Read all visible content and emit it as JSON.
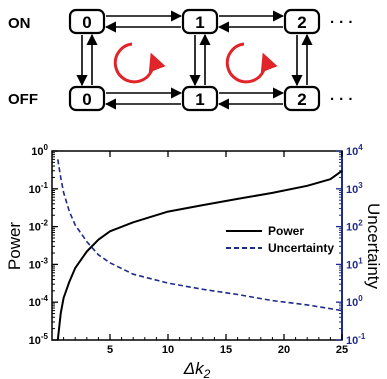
{
  "diagram": {
    "row_labels": [
      "ON",
      "OFF"
    ],
    "states": [
      "0",
      "1",
      "2"
    ],
    "ellipsis": "· · ·",
    "cycle_color": "#e0242a"
  },
  "chart_data": {
    "type": "line",
    "xlabel": "Δk",
    "xlabel_sub": "2",
    "ylabel_left": "Power",
    "ylabel_right": "Uncertainty",
    "xlim": [
      0,
      25
    ],
    "xticks": [
      "5",
      "10",
      "15",
      "20",
      "25"
    ],
    "xtick_values": [
      5,
      10,
      15,
      20,
      25
    ],
    "yscale": "log",
    "ylim_left": [
      1e-05,
      1
    ],
    "ylim_right": [
      0.1,
      10000
    ],
    "yticks_left": [
      {
        "base": "10",
        "exp": "0",
        "value": 1
      },
      {
        "base": "10",
        "exp": "-1",
        "value": 0.1
      },
      {
        "base": "10",
        "exp": "-2",
        "value": 0.01
      },
      {
        "base": "10",
        "exp": "-3",
        "value": 0.001
      },
      {
        "base": "10",
        "exp": "-4",
        "value": 0.0001
      },
      {
        "base": "10",
        "exp": "-5",
        "value": 1e-05
      }
    ],
    "yticks_right": [
      {
        "base": "10",
        "exp": "4",
        "value": 10000
      },
      {
        "base": "10",
        "exp": "3",
        "value": 1000
      },
      {
        "base": "10",
        "exp": "2",
        "value": 100
      },
      {
        "base": "10",
        "exp": "1",
        "value": 10
      },
      {
        "base": "10",
        "exp": "0",
        "value": 1
      },
      {
        "base": "10",
        "exp": "-1",
        "value": 0.1
      }
    ],
    "right_axis_color": "#1f2a8a",
    "legend_position": "center-right",
    "series": [
      {
        "name": "Power",
        "axis": "left",
        "style": "solid",
        "color": "#000000",
        "x": [
          0.5,
          0.75,
          1,
          1.5,
          2,
          3,
          4,
          5,
          7,
          10,
          13,
          16,
          19,
          22,
          24,
          25
        ],
        "y": [
          1e-05,
          5e-05,
          0.00013,
          0.00035,
          0.0008,
          0.0022,
          0.0045,
          0.0075,
          0.013,
          0.025,
          0.037,
          0.054,
          0.078,
          0.12,
          0.18,
          0.3
        ]
      },
      {
        "name": "Uncertainty",
        "axis": "right",
        "style": "dashed",
        "color": "#1f2a8a",
        "x": [
          0.5,
          0.75,
          1,
          1.5,
          2,
          3,
          4,
          5,
          7,
          10,
          13,
          16,
          19,
          22,
          25
        ],
        "y": [
          6000,
          2000,
          800,
          250,
          110,
          40,
          18,
          11,
          5.5,
          3.2,
          2.2,
          1.6,
          1.1,
          0.85,
          0.6
        ]
      }
    ]
  }
}
